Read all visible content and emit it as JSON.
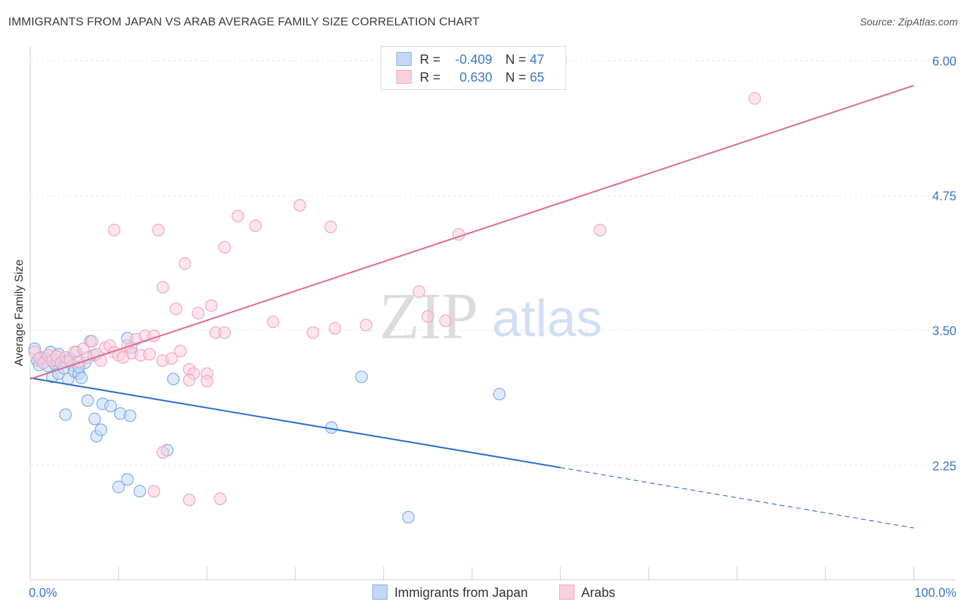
{
  "header": {
    "title": "IMMIGRANTS FROM JAPAN VS ARAB AVERAGE FAMILY SIZE CORRELATION CHART",
    "source": "Source: ZipAtlas.com"
  },
  "watermark": {
    "zip": "ZIP",
    "atlas": "atlas"
  },
  "legend": {
    "rows": [
      {
        "r_label": "R =",
        "r_value": "-0.409",
        "n_label": "N =",
        "n_value": "47"
      },
      {
        "r_label": "R =",
        "r_value": "0.630",
        "n_label": "N =",
        "n_value": "65"
      }
    ]
  },
  "bottom_legend": {
    "japan": "Immigrants from Japan",
    "arabs": "Arabs"
  },
  "chart_data": {
    "type": "scatter",
    "title": "IMMIGRANTS FROM JAPAN VS ARAB AVERAGE FAMILY SIZE CORRELATION CHART",
    "ylabel": "Average Family Size",
    "x_tick_labels": [
      "0.0%",
      "100.0%"
    ],
    "y_tick_labels": [
      "2.25",
      "3.50",
      "4.75",
      "6.00"
    ],
    "y_ticks": [
      2.25,
      3.5,
      4.75,
      6.0
    ],
    "xlim": [
      0,
      100
    ],
    "ylim": [
      1.19,
      6.13
    ],
    "grid": true,
    "legend_position": "top-center",
    "colors": {
      "japan": "#7aaae8",
      "japan_line": "#2f6fd0",
      "arabs": "#f1a3bd",
      "arabs_line": "#e06c95"
    },
    "series": [
      {
        "name": "Immigrants from Japan",
        "r": -0.409,
        "n": 47,
        "trend": {
          "x0": 0,
          "y0": 3.06,
          "x1": 60,
          "y1": 2.23,
          "dashed_to_x": 100,
          "dashed_to_y": 1.67
        },
        "points": [
          [
            0.5,
            3.33
          ],
          [
            0.8,
            3.22
          ],
          [
            1.0,
            3.18
          ],
          [
            1.2,
            3.25
          ],
          [
            1.5,
            3.2
          ],
          [
            1.8,
            3.24
          ],
          [
            2.0,
            3.17
          ],
          [
            2.3,
            3.3
          ],
          [
            2.5,
            3.07
          ],
          [
            2.8,
            3.19
          ],
          [
            3.0,
            3.22
          ],
          [
            3.2,
            3.1
          ],
          [
            3.5,
            3.2
          ],
          [
            3.8,
            3.15
          ],
          [
            4.0,
            3.21
          ],
          [
            4.3,
            3.05
          ],
          [
            4.5,
            3.24
          ],
          [
            4.8,
            3.18
          ],
          [
            5.0,
            3.12
          ],
          [
            5.2,
            3.3
          ],
          [
            5.5,
            3.1
          ],
          [
            5.8,
            3.06
          ],
          [
            6.2,
            3.2
          ],
          [
            6.8,
            3.4
          ],
          [
            7.2,
            3.27
          ],
          [
            4.0,
            2.72
          ],
          [
            6.5,
            2.85
          ],
          [
            7.3,
            2.68
          ],
          [
            8.2,
            2.82
          ],
          [
            7.5,
            2.52
          ],
          [
            8.0,
            2.58
          ],
          [
            9.1,
            2.8
          ],
          [
            10.2,
            2.73
          ],
          [
            11.3,
            2.71
          ],
          [
            11.4,
            3.34
          ],
          [
            11.0,
            3.43
          ],
          [
            15.5,
            2.39
          ],
          [
            16.2,
            3.05
          ],
          [
            10.0,
            2.05
          ],
          [
            11.0,
            2.12
          ],
          [
            12.4,
            2.01
          ],
          [
            34.1,
            2.6
          ],
          [
            37.5,
            3.07
          ],
          [
            53.1,
            2.91
          ],
          [
            42.8,
            1.77
          ],
          [
            5.5,
            3.16
          ],
          [
            3.2,
            3.28
          ]
        ]
      },
      {
        "name": "Arabs",
        "r": 0.63,
        "n": 65,
        "trend": {
          "x0": 0,
          "y0": 3.05,
          "x1": 100,
          "y1": 5.77
        },
        "points": [
          [
            0.5,
            3.3
          ],
          [
            1.0,
            3.24
          ],
          [
            1.5,
            3.2
          ],
          [
            2.0,
            3.27
          ],
          [
            2.5,
            3.22
          ],
          [
            3.0,
            3.26
          ],
          [
            3.5,
            3.2
          ],
          [
            4.0,
            3.25
          ],
          [
            4.5,
            3.22
          ],
          [
            5.0,
            3.3
          ],
          [
            5.5,
            3.21
          ],
          [
            6.0,
            3.33
          ],
          [
            6.5,
            3.25
          ],
          [
            7.0,
            3.4
          ],
          [
            7.5,
            3.28
          ],
          [
            8.0,
            3.22
          ],
          [
            8.5,
            3.34
          ],
          [
            9.0,
            3.36
          ],
          [
            9.5,
            3.3
          ],
          [
            10.0,
            3.27
          ],
          [
            10.5,
            3.25
          ],
          [
            11.0,
            3.36
          ],
          [
            11.5,
            3.29
          ],
          [
            12.0,
            3.42
          ],
          [
            12.5,
            3.27
          ],
          [
            13.0,
            3.45
          ],
          [
            13.5,
            3.28
          ],
          [
            14.0,
            3.45
          ],
          [
            15.0,
            3.22
          ],
          [
            16.0,
            3.24
          ],
          [
            17.0,
            3.31
          ],
          [
            18.0,
            3.14
          ],
          [
            18.5,
            3.1
          ],
          [
            20.0,
            3.1
          ],
          [
            21.0,
            3.48
          ],
          [
            22.0,
            3.48
          ],
          [
            9.5,
            4.43
          ],
          [
            14.5,
            4.43
          ],
          [
            15.0,
            3.9
          ],
          [
            16.5,
            3.7
          ],
          [
            17.5,
            4.12
          ],
          [
            19.0,
            3.66
          ],
          [
            20.5,
            3.73
          ],
          [
            22.0,
            4.27
          ],
          [
            23.5,
            4.56
          ],
          [
            25.5,
            4.47
          ],
          [
            27.5,
            3.58
          ],
          [
            30.5,
            4.66
          ],
          [
            32.0,
            3.48
          ],
          [
            34.0,
            4.46
          ],
          [
            34.5,
            3.52
          ],
          [
            38.0,
            3.55
          ],
          [
            44.0,
            3.86
          ],
          [
            45.0,
            3.63
          ],
          [
            47.0,
            3.59
          ],
          [
            48.5,
            4.39
          ],
          [
            60.0,
            6.02
          ],
          [
            64.5,
            4.43
          ],
          [
            82.0,
            5.65
          ],
          [
            18.0,
            1.93
          ],
          [
            21.5,
            1.94
          ],
          [
            14.0,
            2.01
          ],
          [
            15.0,
            2.37
          ],
          [
            18.0,
            3.04
          ],
          [
            20.0,
            3.03
          ]
        ]
      }
    ]
  }
}
